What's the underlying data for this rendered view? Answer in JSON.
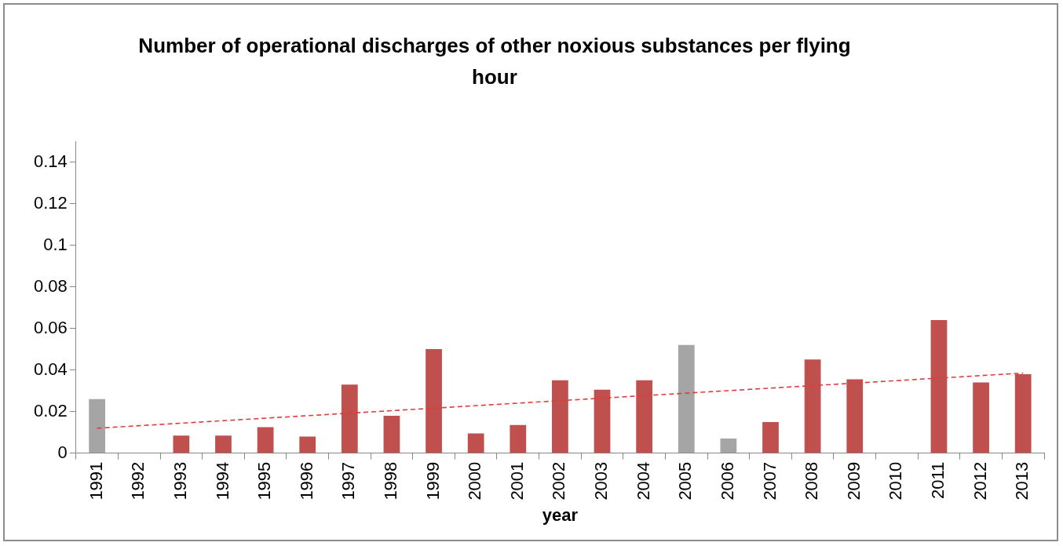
{
  "chart_data": {
    "type": "bar",
    "title": "Number of operational discharges of other noxious substances per flying hour",
    "xlabel": "year",
    "categories": [
      "1991",
      "1992",
      "1993",
      "1994",
      "1995",
      "1996",
      "1997",
      "1998",
      "1999",
      "2000",
      "2001",
      "2002",
      "2003",
      "2004",
      "2005",
      "2006",
      "2007",
      "2008",
      "2009",
      "2010",
      "2011",
      "2012",
      "2013"
    ],
    "series": [
      {
        "values": [
          0.026,
          0,
          0.0085,
          0.0085,
          0.0125,
          0.008,
          0.033,
          0.018,
          0.05,
          0.0095,
          0.0135,
          0.035,
          0.0305,
          0.035,
          0.052,
          0.007,
          0.015,
          0.045,
          0.0355,
          0,
          0.064,
          0.034,
          0.038
        ],
        "colors": [
          "#a5a5a5",
          "#c0504d",
          "#c0504d",
          "#c0504d",
          "#c0504d",
          "#c0504d",
          "#c0504d",
          "#c0504d",
          "#c0504d",
          "#c0504d",
          "#c0504d",
          "#c0504d",
          "#c0504d",
          "#c0504d",
          "#a5a5a5",
          "#a5a5a5",
          "#c0504d",
          "#c0504d",
          "#c0504d",
          "#c0504d",
          "#c0504d",
          "#c0504d",
          "#c0504d"
        ]
      },
      {
        "type": "line",
        "values": [
          0.012,
          null,
          null,
          null,
          null,
          null,
          null,
          null,
          null,
          null,
          null,
          null,
          null,
          null,
          null,
          null,
          null,
          null,
          null,
          null,
          null,
          null,
          0.0385
        ],
        "color": "#e03c3c",
        "line_style": "dashed"
      }
    ],
    "ylim": [
      0,
      0.15
    ],
    "yticks": [
      0,
      0.02,
      0.04,
      0.06,
      0.08,
      0.1,
      0.12,
      0.14
    ],
    "grid": false,
    "legend": false,
    "marker": "none"
  }
}
